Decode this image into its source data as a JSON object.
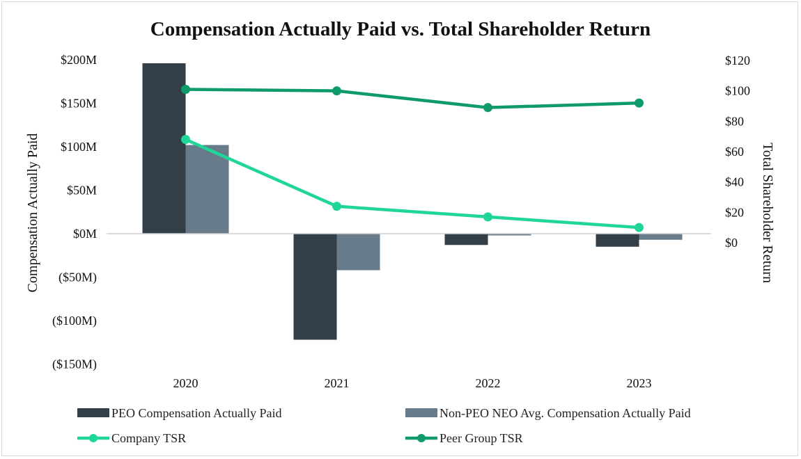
{
  "chart_data": {
    "type": "bar",
    "title": "Compensation Actually Paid vs. Total Shareholder Return",
    "categories": [
      "2020",
      "2021",
      "2022",
      "2023"
    ],
    "ylabel": "Compensation Actually Paid",
    "y2label": "Total Shareholder Return",
    "ylim": [
      -150,
      200
    ],
    "y2lim": [
      0,
      120
    ],
    "y_ticks": [
      "$200M",
      "$150M",
      "$100M",
      "$50M",
      "$0M",
      "($50M)",
      "($100M)",
      "($150M)"
    ],
    "y_tick_values": [
      200,
      150,
      100,
      50,
      0,
      -50,
      -100,
      -150
    ],
    "y2_ticks": [
      "$120",
      "$100",
      "$80",
      "$60",
      "$40",
      "$20",
      "$0"
    ],
    "y2_tick_values": [
      120,
      100,
      80,
      60,
      40,
      20,
      0
    ],
    "bar_series": [
      {
        "name": "PEO Compensation Actually Paid",
        "values": [
          196,
          -122,
          -13,
          -15
        ],
        "color": "#333f48"
      },
      {
        "name": "Non-PEO NEO Avg. Compensation Actually Paid",
        "values": [
          102,
          -42,
          -2,
          -7
        ],
        "color": "#687b8a"
      }
    ],
    "line_series": [
      {
        "name": "Company TSR",
        "values": [
          68,
          24,
          17,
          10
        ],
        "color": "#1fd698"
      },
      {
        "name": "Peer Group TSR",
        "values": [
          101,
          100,
          89,
          92
        ],
        "color": "#0f9a69"
      }
    ],
    "legend_position": "bottom",
    "grid": false
  }
}
